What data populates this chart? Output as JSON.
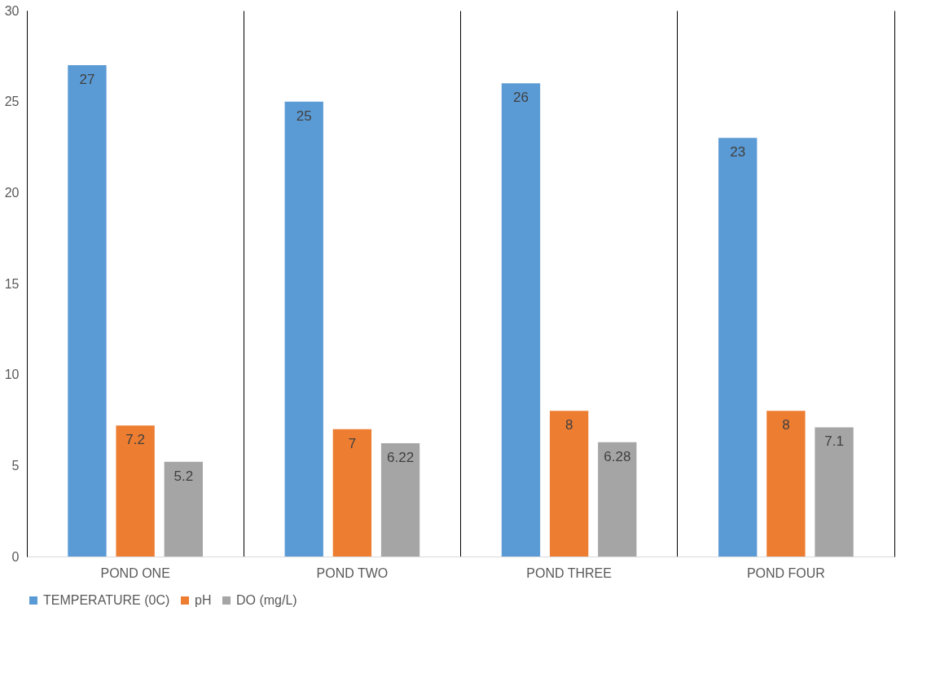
{
  "chart_data": {
    "type": "bar",
    "categories": [
      "POND ONE",
      "POND TWO",
      "POND THREE",
      "POND FOUR"
    ],
    "series": [
      {
        "name": "TEMPERATURE (0C)",
        "color": "#5b9bd5",
        "values": [
          27,
          25,
          26,
          23
        ]
      },
      {
        "name": "pH",
        "color": "#ed7d31",
        "values": [
          7.2,
          7,
          8,
          8
        ]
      },
      {
        "name": "DO (mg/L)",
        "color": "#a5a5a5",
        "values": [
          5.2,
          6.22,
          6.28,
          7.1
        ]
      }
    ],
    "ylim": [
      0,
      30
    ],
    "yticks": [
      0,
      5,
      10,
      15,
      20,
      25,
      30
    ],
    "data_labels": true,
    "grid": "x",
    "legend": "bottom"
  }
}
